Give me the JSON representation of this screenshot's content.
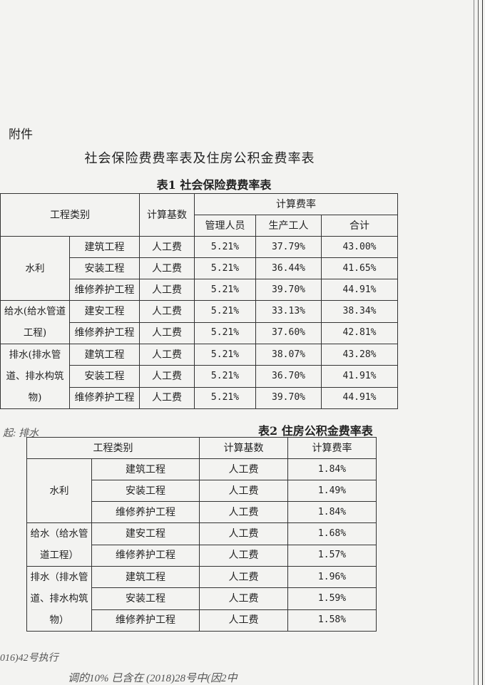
{
  "attachment_label": "附件",
  "doc_title": "社会保险费费率表及住房公积金费率表",
  "table1": {
    "title": "表1 社会保险费费率表",
    "headers": {
      "category": "工程类别",
      "base": "计算基数",
      "rate": "计算费率",
      "manager": "管理人员",
      "worker": "生产工人",
      "total": "合计"
    },
    "groups": [
      {
        "name": "水利",
        "rows": [
          {
            "type": "建筑工程",
            "base": "人工费",
            "manager": "5.21%",
            "worker": "37.79%",
            "total": "43.00%"
          },
          {
            "type": "安装工程",
            "base": "人工费",
            "manager": "5.21%",
            "worker": "36.44%",
            "total": "41.65%"
          },
          {
            "type": "维修养护工程",
            "base": "人工费",
            "manager": "5.21%",
            "worker": "39.70%",
            "total": "44.91%"
          }
        ]
      },
      {
        "name": "给水(给水管道工程)",
        "rows": [
          {
            "type": "建安工程",
            "base": "人工费",
            "manager": "5.21%",
            "worker": "33.13%",
            "total": "38.34%"
          },
          {
            "type": "维修养护工程",
            "base": "人工费",
            "manager": "5.21%",
            "worker": "37.60%",
            "total": "42.81%"
          }
        ]
      },
      {
        "name": "排水(排水管道、排水构筑物)",
        "rows": [
          {
            "type": "建筑工程",
            "base": "人工费",
            "manager": "5.21%",
            "worker": "38.07%",
            "total": "43.28%"
          },
          {
            "type": "安装工程",
            "base": "人工费",
            "manager": "5.21%",
            "worker": "36.70%",
            "total": "41.91%"
          },
          {
            "type": "维修养护工程",
            "base": "人工费",
            "manager": "5.21%",
            "worker": "39.70%",
            "total": "44.91%"
          }
        ]
      }
    ]
  },
  "table2": {
    "title": "表2 住房公积金费率表",
    "headers": {
      "category": "工程类别",
      "base": "计算基数",
      "rate": "计算费率"
    },
    "groups": [
      {
        "name": "水利",
        "rows": [
          {
            "type": "建筑工程",
            "base": "人工费",
            "rate": "1.84%"
          },
          {
            "type": "安装工程",
            "base": "人工费",
            "rate": "1.49%"
          },
          {
            "type": "维修养护工程",
            "base": "人工费",
            "rate": "1.84%"
          }
        ]
      },
      {
        "name": "给水（给水管道工程）",
        "rows": [
          {
            "type": "建安工程",
            "base": "人工费",
            "rate": "1.68%"
          },
          {
            "type": "维修养护工程",
            "base": "人工费",
            "rate": "1.57%"
          }
        ]
      },
      {
        "name": "排水（排水管道、排水构筑物）",
        "rows": [
          {
            "type": "建筑工程",
            "base": "人工费",
            "rate": "1.96%"
          },
          {
            "type": "安装工程",
            "base": "人工费",
            "rate": "1.59%"
          },
          {
            "type": "维修养护工程",
            "base": "人工费",
            "rate": "1.58%"
          }
        ]
      }
    ]
  },
  "handwriting": {
    "note_top": "起: 排水",
    "note_line1": "016)42号执行",
    "note_line2": "调的10% 已含在 (2018)28号中(因2中"
  }
}
